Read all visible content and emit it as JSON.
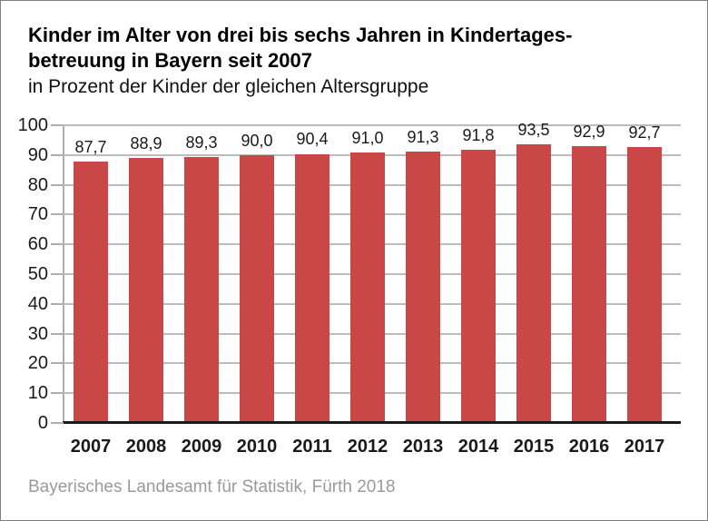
{
  "header": {
    "title": "Kinder im Alter von drei bis sechs Jahren in Kindertages-\nbetreuung in Bayern seit 2007",
    "subtitle": "in Prozent der Kinder der gleichen Altersgruppe"
  },
  "footer": {
    "text": "Bayerisches Landesamt für Statistik, Fürth 2018"
  },
  "colors": {
    "bar": "#c94747",
    "gridline": "#bcbcbc",
    "axis": "#aeaeae",
    "baseline": "#1a1a1a",
    "text": "#1a1a1a",
    "source_text": "#9a9a9a"
  },
  "chart_data": {
    "type": "bar",
    "title": "Kinder im Alter von drei bis sechs Jahren in Kindertagesbetreuung in Bayern seit 2007",
    "subtitle": "in Prozent der Kinder der gleichen Altersgruppe",
    "categories": [
      "2007",
      "2008",
      "2009",
      "2010",
      "2011",
      "2012",
      "2013",
      "2014",
      "2015",
      "2016",
      "2017"
    ],
    "values": [
      87.7,
      88.9,
      89.3,
      90.0,
      90.4,
      91.0,
      91.3,
      91.8,
      93.5,
      92.9,
      92.7
    ],
    "value_labels": [
      "87,7",
      "88,9",
      "89,3",
      "90,0",
      "90,4",
      "91,0",
      "91,3",
      "91,8",
      "93,5",
      "92,9",
      "92,7"
    ],
    "xlabel": "",
    "ylabel": "",
    "ylim": [
      0,
      100
    ],
    "ytick_step": 10,
    "ytick_labels": [
      "0",
      "10",
      "20",
      "30",
      "40",
      "50",
      "60",
      "70",
      "80",
      "90",
      "100"
    ],
    "grid": "horizontal",
    "legend": "none",
    "source": "Bayerisches Landesamt für Statistik, Fürth 2018"
  }
}
